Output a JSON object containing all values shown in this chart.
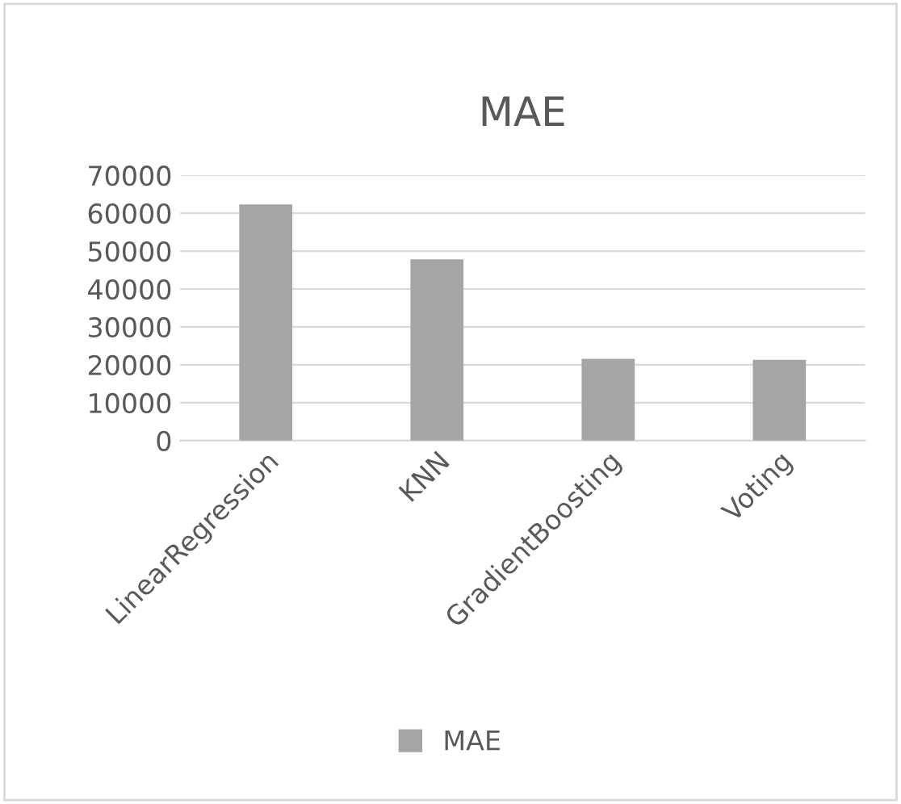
{
  "chart_data": {
    "type": "bar",
    "title": "MAE",
    "categories": [
      "LinearRegression",
      "KNN",
      "GradientBoosting",
      "Voting"
    ],
    "series": [
      {
        "name": "MAE",
        "color": "#a5a5a5",
        "values": [
          62300,
          47800,
          21600,
          21300
        ]
      }
    ],
    "ylim": [
      0,
      70000
    ],
    "yticks": [
      0,
      10000,
      20000,
      30000,
      40000,
      50000,
      60000,
      70000
    ],
    "grid": "y",
    "legend": "bottom"
  }
}
